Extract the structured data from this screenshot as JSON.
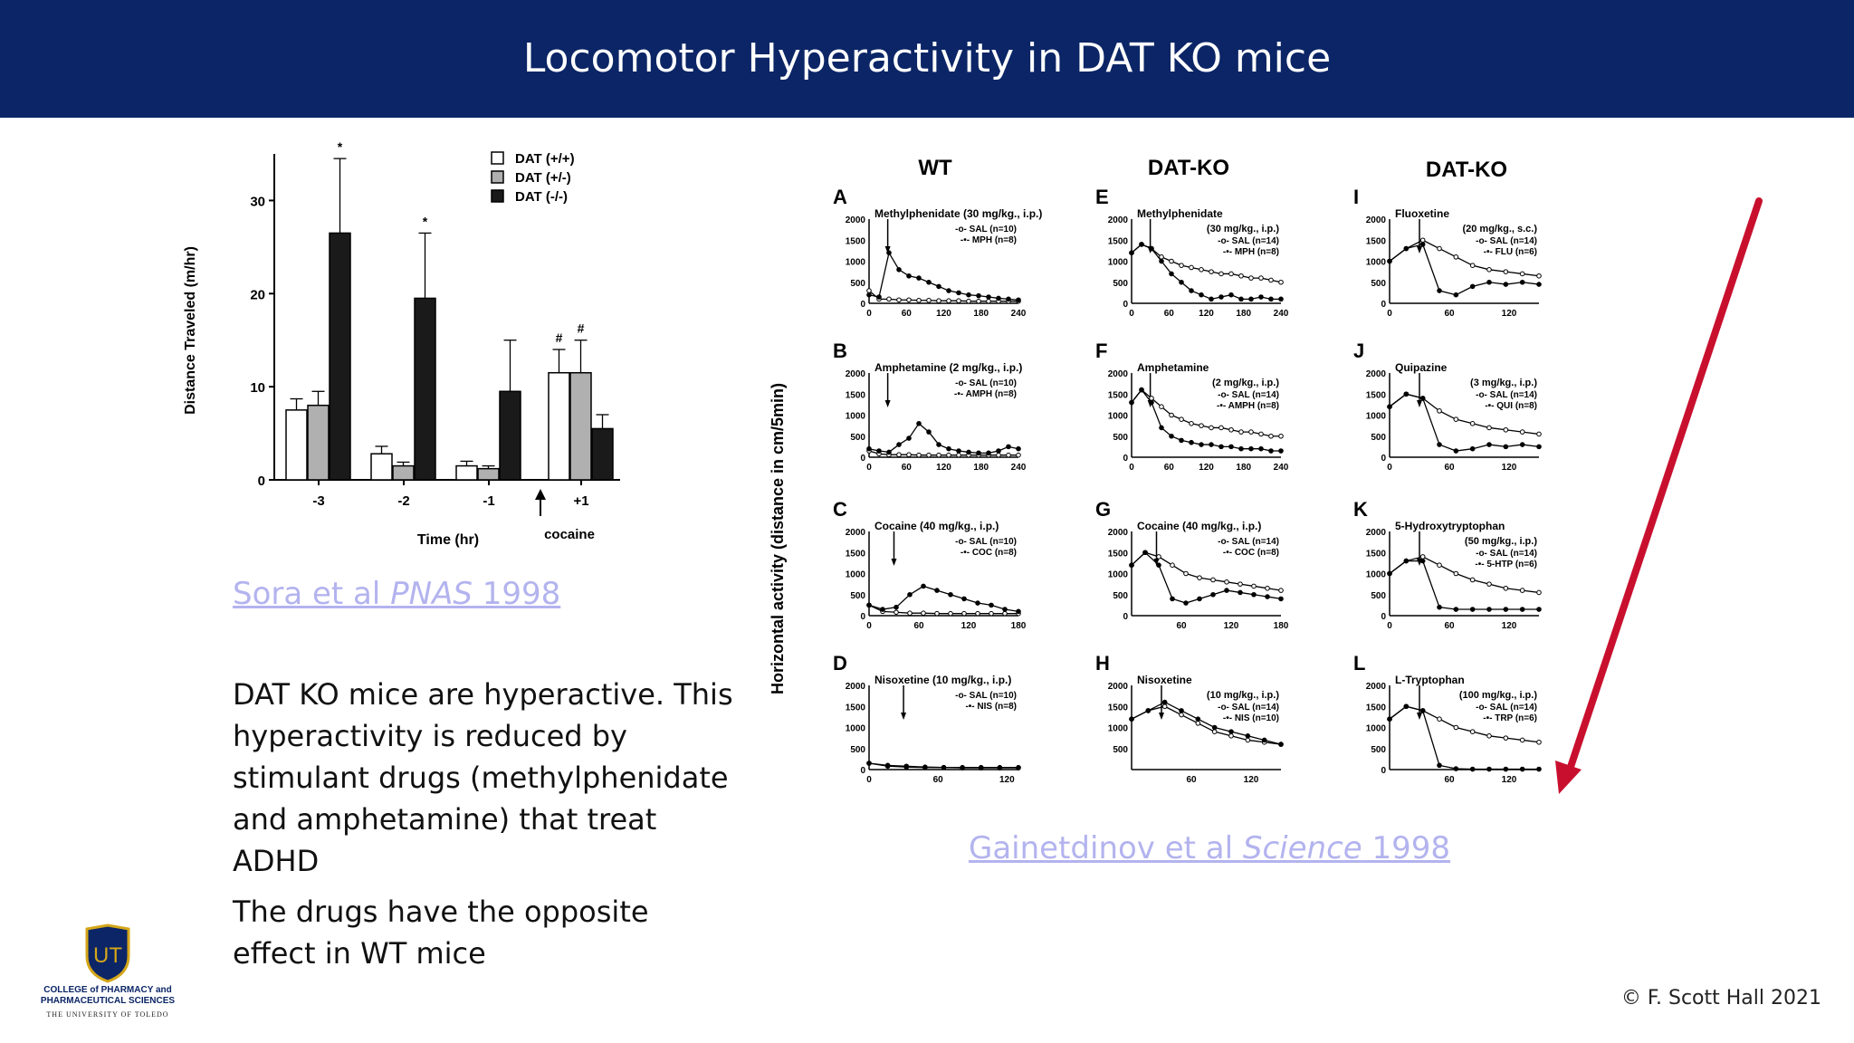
{
  "slide": {
    "title": "Locomotor Hyperactivity in DAT KO mice",
    "body": [
      "DAT KO mice are hyperactive. This hyperactivity is reduced by stimulant drugs (methylphenidate and amphetamine) that treat ADHD",
      "The drugs have the opposite effect in WT mice"
    ],
    "copyright": "© F. Scott Hall 2021",
    "colors": {
      "banner": "#0b2566",
      "link": "#b3b3ef",
      "arrow": "#c8102e"
    }
  },
  "refs": {
    "sora": {
      "pre": "Sora et al ",
      "journal": "PNAS",
      "year": " 1998"
    },
    "gain": {
      "pre": "Gainetdinov et al ",
      "journal": "Science",
      "year": " 1998"
    }
  },
  "logo": {
    "letters": "UT",
    "line1": "COLLEGE of PHARMACY and",
    "line2": "PHARMACEUTICAL SCIENCES",
    "line3": "THE UNIVERSITY OF TOLEDO"
  },
  "chart_data": [
    {
      "type": "bar",
      "ylabel": "Distance Traveled (m/hr)",
      "xlabel": "Time (hr)",
      "ylim": [
        0,
        35
      ],
      "yticks": [
        "0",
        "10",
        "20",
        "30"
      ],
      "categories": [
        "-3",
        "-2",
        "-1",
        "+1"
      ],
      "arrow_label": "cocaine",
      "series": [
        {
          "name": "DAT (+/+)",
          "fill": "#ffffff",
          "values": [
            7.5,
            2.8,
            1.5,
            11.5
          ],
          "errors": [
            1.2,
            0.8,
            0.5,
            2.5
          ]
        },
        {
          "name": "DAT (+/-)",
          "fill": "#b0b0b0",
          "values": [
            8.0,
            1.5,
            1.2,
            11.5
          ],
          "errors": [
            1.5,
            0.4,
            0.3,
            3.5
          ]
        },
        {
          "name": "DAT (-/-)",
          "fill": "#1a1a1a",
          "values": [
            26.5,
            19.5,
            9.5,
            5.5
          ],
          "errors": [
            8.0,
            7.0,
            5.5,
            1.5
          ]
        }
      ],
      "markers": {
        "0": [
          "",
          "",
          "*"
        ],
        "1": [
          "",
          "",
          "*"
        ],
        "3": [
          "#",
          "#",
          ""
        ]
      }
    },
    {
      "type": "line",
      "figure_ylabel": "Horizontal activity (distance in cm/5min)",
      "column_headers": [
        "WT",
        "DAT-KO",
        "DAT-KO"
      ],
      "panels": [
        {
          "letter": "A",
          "drug": "Methylphenidate (30 mg/kg., i.p.)",
          "sal": "SAL (n=10)",
          "drg": "MPH (n=8)",
          "xmax": 240,
          "xticks": [
            "0",
            "60",
            "120",
            "180",
            "240"
          ],
          "injection_x": 30,
          "yticks": [
            "0",
            "500",
            "1000",
            "1500",
            "2000"
          ],
          "sal_values": [
            300,
            100,
            100,
            80,
            80,
            70,
            70,
            60,
            60,
            60,
            50,
            50,
            50,
            50,
            50,
            50
          ],
          "drug_values": [
            200,
            150,
            1200,
            800,
            650,
            600,
            500,
            400,
            300,
            250,
            200,
            180,
            150,
            120,
            100,
            80
          ]
        },
        {
          "letter": "B",
          "drug": "Amphetamine (2 mg/kg., i.p.)",
          "sal": "SAL (n=10)",
          "drg": "AMPH (n=8)",
          "xmax": 240,
          "xticks": [
            "0",
            "60",
            "120",
            "180",
            "240"
          ],
          "injection_x": 30,
          "yticks": [
            "0",
            "500",
            "1000",
            "1500",
            "2000"
          ],
          "sal_values": [
            150,
            80,
            60,
            60,
            60,
            50,
            50,
            50,
            50,
            50,
            50,
            50,
            50,
            50,
            50,
            50
          ],
          "drug_values": [
            200,
            150,
            120,
            300,
            450,
            800,
            600,
            300,
            200,
            150,
            120,
            100,
            100,
            150,
            250,
            200
          ]
        },
        {
          "letter": "C",
          "drug": "Cocaine (40 mg/kg., i.p.)",
          "sal": "SAL (n=10)",
          "drg": "COC (n=8)",
          "xmax": 180,
          "xticks": [
            "0",
            "60",
            "120",
            "180"
          ],
          "injection_x": 30,
          "yticks": [
            "0",
            "500",
            "1000",
            "1500",
            "2000"
          ],
          "sal_values": [
            250,
            100,
            80,
            60,
            60,
            50,
            50,
            50,
            50,
            50,
            50,
            50
          ],
          "drug_values": [
            250,
            150,
            200,
            500,
            700,
            600,
            500,
            400,
            300,
            250,
            150,
            100
          ]
        },
        {
          "letter": "D",
          "drug": "Nisoxetine (10 mg/kg., i.p.)",
          "sal": "SAL (n=10)",
          "drg": "NIS (n=8)",
          "xmax": 130,
          "xticks": [
            "0",
            "60",
            "120"
          ],
          "injection_x": 30,
          "yticks": [
            "0",
            "500",
            "1000",
            "1500",
            "2000"
          ],
          "sal_values": [
            150,
            80,
            60,
            50,
            50,
            50,
            50,
            50,
            50
          ],
          "drug_values": [
            150,
            100,
            80,
            60,
            50,
            40,
            40,
            40,
            40
          ]
        },
        {
          "letter": "E",
          "drug": "Methylphenidate",
          "drug2": "(30 mg/kg., i.p.)",
          "sal": "SAL (n=14)",
          "drg": "MPH (n=8)",
          "xmax": 240,
          "xticks": [
            "0",
            "60",
            "120",
            "180",
            "240"
          ],
          "injection_x": 30,
          "yticks": [
            "0",
            "500",
            "1000",
            "1500",
            "2000"
          ],
          "sal_values": [
            1200,
            1400,
            1300,
            1100,
            1000,
            900,
            850,
            800,
            750,
            700,
            700,
            650,
            600,
            600,
            550,
            500
          ],
          "drug_values": [
            1200,
            1400,
            1300,
            1000,
            700,
            500,
            300,
            200,
            100,
            150,
            200,
            100,
            100,
            150,
            100,
            100
          ]
        },
        {
          "letter": "F",
          "drug": "Amphetamine",
          "drug2": "(2 mg/kg., i.p.)",
          "sal": "SAL (n=14)",
          "drg": "AMPH (n=8)",
          "xmax": 240,
          "xticks": [
            "0",
            "60",
            "120",
            "180",
            "240"
          ],
          "injection_x": 30,
          "yticks": [
            "0",
            "500",
            "1000",
            "1500",
            "2000"
          ],
          "sal_values": [
            1300,
            1600,
            1400,
            1200,
            1000,
            900,
            800,
            750,
            700,
            700,
            650,
            600,
            600,
            550,
            500,
            500
          ],
          "drug_values": [
            1300,
            1600,
            1300,
            700,
            500,
            400,
            350,
            300,
            300,
            250,
            250,
            200,
            200,
            200,
            150,
            150
          ]
        },
        {
          "letter": "G",
          "drug": "Cocaine (40 mg/kg., i.p.)",
          "sal": "SAL (n=14)",
          "drg": "COC (n=8)",
          "xmax": 180,
          "xticks": [
            "60",
            "120",
            "180"
          ],
          "injection_x": 30,
          "yticks": [
            "0",
            "500",
            "1000",
            "1500",
            "2000"
          ],
          "sal_values": [
            1200,
            1500,
            1400,
            1200,
            1000,
            900,
            850,
            800,
            750,
            700,
            650,
            600
          ],
          "drug_values": [
            1200,
            1500,
            1200,
            400,
            300,
            400,
            500,
            600,
            550,
            500,
            450,
            400
          ]
        },
        {
          "letter": "H",
          "drug": "Nisoxetine",
          "drug2": "(10 mg/kg., i.p.)",
          "sal": "SAL (n=14)",
          "drg": "NIS (n=10)",
          "xmax": 150,
          "xticks": [
            "60",
            "120"
          ],
          "injection_x": 30,
          "yticks": [
            "500",
            "1000",
            "1500",
            "2000"
          ],
          "sal_values": [
            1200,
            1400,
            1500,
            1300,
            1100,
            900,
            800,
            700,
            650,
            600
          ],
          "drug_values": [
            1200,
            1400,
            1600,
            1400,
            1200,
            1000,
            900,
            800,
            700,
            600
          ]
        },
        {
          "letter": "I",
          "drug": "Fluoxetine",
          "drug2": "(20 mg/kg., s.c.)",
          "sal": "SAL (n=14)",
          "drg": "FLU (n=6)",
          "xmax": 150,
          "xticks": [
            "0",
            "60",
            "120"
          ],
          "injection_x": 30,
          "yticks": [
            "0",
            "500",
            "1000",
            "1500",
            "2000"
          ],
          "sal_values": [
            1000,
            1300,
            1500,
            1300,
            1100,
            900,
            800,
            750,
            700,
            650
          ],
          "drug_values": [
            1000,
            1300,
            1400,
            300,
            200,
            400,
            500,
            450,
            500,
            450
          ]
        },
        {
          "letter": "J",
          "drug": "Quipazine",
          "drug2": "(3 mg/kg., i.p.)",
          "sal": "SAL (n=14)",
          "drg": "QUI (n=8)",
          "xmax": 150,
          "xticks": [
            "0",
            "60",
            "120"
          ],
          "injection_x": 30,
          "yticks": [
            "0",
            "500",
            "1000",
            "1500",
            "2000"
          ],
          "sal_values": [
            1200,
            1500,
            1400,
            1100,
            900,
            800,
            700,
            650,
            600,
            550
          ],
          "drug_values": [
            1200,
            1500,
            1400,
            300,
            150,
            200,
            300,
            250,
            300,
            250
          ]
        },
        {
          "letter": "K",
          "drug": "5-Hydroxytryptophan",
          "drug2": "(50 mg/kg., i.p.)",
          "sal": "SAL (n=14)",
          "drg": "5-HTP (n=6)",
          "xmax": 150,
          "xticks": [
            "0",
            "60",
            "120"
          ],
          "injection_x": 30,
          "yticks": [
            "0",
            "500",
            "1000",
            "1500",
            "2000"
          ],
          "sal_values": [
            1000,
            1300,
            1400,
            1200,
            1000,
            850,
            750,
            650,
            600,
            550
          ],
          "drug_values": [
            1000,
            1300,
            1300,
            200,
            150,
            150,
            150,
            150,
            150,
            150
          ]
        },
        {
          "letter": "L",
          "drug": "L-Tryptophan",
          "drug2": "(100 mg/kg., i.p.)",
          "sal": "SAL (n=14)",
          "drg": "TRP (n=6)",
          "xmax": 150,
          "xticks": [
            "60",
            "120"
          ],
          "injection_x": 30,
          "yticks": [
            "0",
            "500",
            "1000",
            "1500",
            "2000"
          ],
          "sal_values": [
            1200,
            1500,
            1400,
            1200,
            1000,
            900,
            800,
            750,
            700,
            650
          ],
          "drug_values": [
            1200,
            1500,
            1400,
            100,
            20,
            10,
            10,
            10,
            10,
            10
          ]
        }
      ]
    }
  ]
}
